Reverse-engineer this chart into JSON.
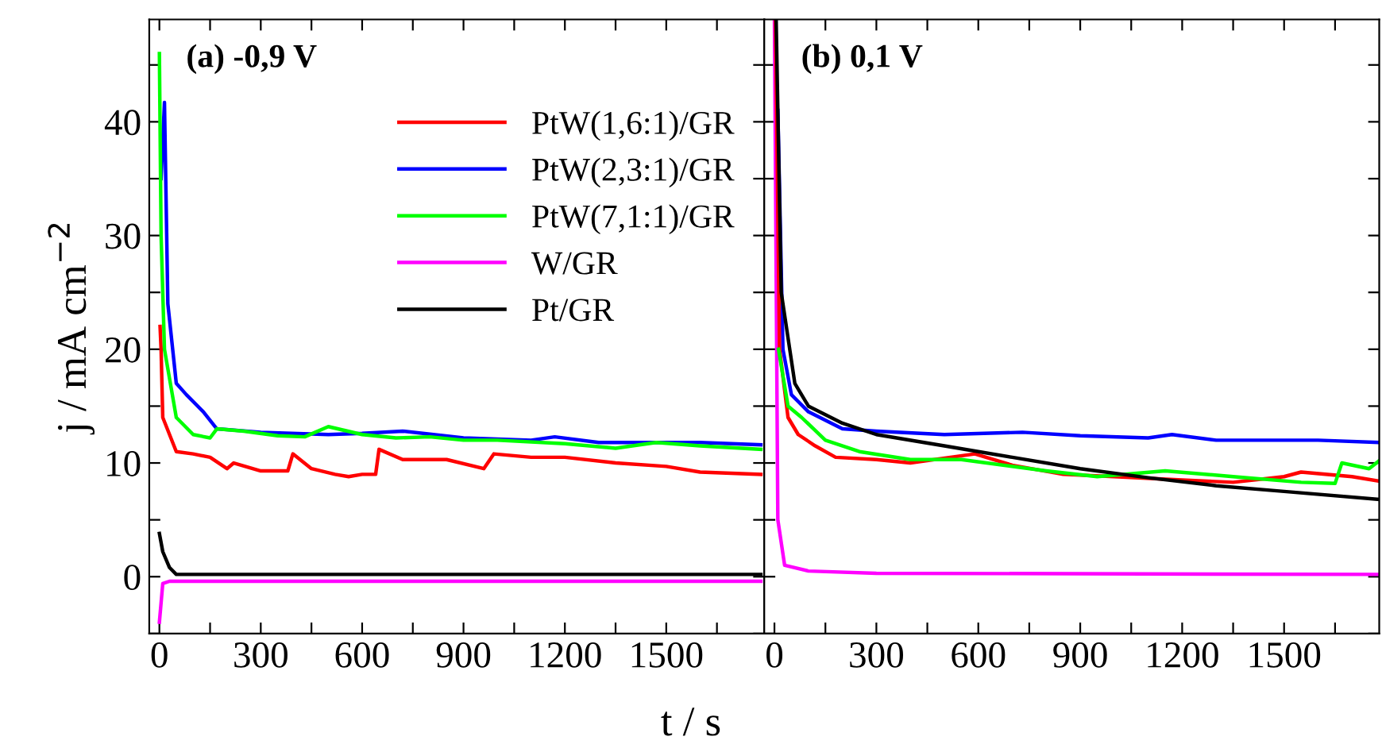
{
  "chart_data": [
    {
      "type": "line",
      "title": "(a) -0,9 V",
      "xlabel": "t / s",
      "ylabel": "j / mA cm$^{−2}$",
      "legend": "top right",
      "grid": false,
      "xlim": [
        -30,
        1790
      ],
      "ylim": [
        -5,
        49
      ],
      "xticks": [
        0,
        {
          "value": 150,
          "label": null
        },
        300,
        {
          "value": 450,
          "label": null
        },
        600,
        {
          "value": 750,
          "label": null
        },
        900,
        {
          "value": 1050,
          "label": null
        },
        1200,
        {
          "value": 1350,
          "label": null
        },
        1500,
        {
          "value": 1650,
          "label": null
        }
      ],
      "yticks": [
        {
          "value": -5,
          "label": null
        },
        0,
        {
          "value": 5,
          "label": null
        },
        10,
        {
          "value": 15,
          "label": null
        },
        20,
        {
          "value": 25,
          "label": null
        },
        30,
        {
          "value": 35,
          "label": null
        },
        40,
        {
          "value": 45,
          "label": null
        }
      ],
      "series": [
        {
          "name": "PtW(1,6:1)/GR",
          "color": "#ff0000",
          "x": [
            2,
            5,
            10,
            50,
            100,
            150,
            200,
            220,
            300,
            380,
            395,
            450,
            520,
            560,
            600,
            640,
            650,
            720,
            850,
            960,
            990,
            1100,
            1200,
            1350,
            1500,
            1600,
            1780
          ],
          "values": [
            22,
            20,
            14,
            11,
            10.8,
            10.5,
            9.5,
            10,
            9.3,
            9.3,
            10.8,
            9.5,
            9,
            8.8,
            9,
            9,
            11.2,
            10.3,
            10.3,
            9.5,
            10.8,
            10.5,
            10.5,
            10,
            9.7,
            9.2,
            9
          ]
        },
        {
          "name": "PtW(2,3:1)/GR",
          "color": "#0000ff",
          "x": [
            5,
            15,
            25,
            50,
            80,
            130,
            170,
            300,
            500,
            600,
            720,
            900,
            1100,
            1170,
            1300,
            1500,
            1600,
            1780
          ],
          "values": [
            35,
            41.7,
            24,
            17,
            16,
            14.5,
            13,
            12.7,
            12.5,
            12.6,
            12.8,
            12.2,
            12,
            12.3,
            11.8,
            11.8,
            11.8,
            11.6
          ]
        },
        {
          "name": "PtW(7,1:1)/GR",
          "color": "#00ff00",
          "x": [
            0,
            5,
            15,
            50,
            100,
            150,
            170,
            250,
            350,
            430,
            500,
            600,
            700,
            800,
            900,
            1000,
            1200,
            1350,
            1470,
            1600,
            1780
          ],
          "values": [
            46,
            30,
            20,
            14,
            12.5,
            12.2,
            13,
            12.8,
            12.4,
            12.3,
            13.2,
            12.5,
            12.2,
            12.3,
            12,
            12,
            11.7,
            11.3,
            11.8,
            11.5,
            11.2
          ]
        },
        {
          "name": "W/GR",
          "color": "#ff00ff",
          "x": [
            0,
            10,
            30,
            1780
          ],
          "values": [
            -4,
            -0.6,
            -0.4,
            -0.4
          ]
        },
        {
          "name": "Pt/GR",
          "color": "#000000",
          "x": [
            0,
            10,
            30,
            50,
            1780
          ],
          "values": [
            3.8,
            2.2,
            0.8,
            0.2,
            0.2
          ]
        }
      ]
    },
    {
      "type": "line",
      "title": "(b) 0,1 V",
      "tick_labels": "x",
      "grid": false,
      "xlim": [
        -30,
        1780
      ],
      "ylim": [
        -5,
        49
      ],
      "xticks": [
        0,
        {
          "value": 150,
          "label": null
        },
        300,
        {
          "value": 450,
          "label": null
        },
        600,
        {
          "value": 750,
          "label": null
        },
        900,
        {
          "value": 1050,
          "label": null
        },
        1200,
        {
          "value": 1350,
          "label": null
        },
        1500,
        {
          "value": 1650,
          "label": null
        }
      ],
      "yticks": [
        {
          "value": -5,
          "label": null
        },
        {
          "value": 0,
          "label": null
        },
        {
          "value": 5,
          "label": null
        },
        {
          "value": 10,
          "label": null
        },
        {
          "value": 15,
          "label": null
        },
        {
          "value": 20,
          "label": null
        },
        {
          "value": 25,
          "label": null
        },
        {
          "value": 30,
          "label": null
        },
        {
          "value": 35,
          "label": null
        },
        {
          "value": 40,
          "label": null
        },
        {
          "value": 45,
          "label": null
        }
      ],
      "series": [
        {
          "color": "#ff00ff",
          "x": [
            0,
            10,
            30,
            100,
            300,
            1780
          ],
          "values": [
            49,
            5,
            1,
            0.5,
            0.3,
            0.2
          ]
        },
        {
          "color": "#0000ff",
          "x": [
            10,
            25,
            50,
            100,
            200,
            300,
            500,
            730,
            900,
            1100,
            1170,
            1300,
            1600,
            1780
          ],
          "values": [
            41,
            20,
            16,
            14.5,
            13,
            12.8,
            12.5,
            12.7,
            12.4,
            12.2,
            12.5,
            12,
            12,
            11.8
          ]
        },
        {
          "color": "#ff0000",
          "x": [
            3,
            15,
            40,
            70,
            120,
            180,
            300,
            400,
            590,
            700,
            850,
            1000,
            1200,
            1350,
            1500,
            1550,
            1700,
            1780
          ],
          "values": [
            49,
            20,
            14,
            12.5,
            11.5,
            10.5,
            10.3,
            10,
            10.8,
            9.8,
            9,
            8.8,
            8.5,
            8.3,
            8.8,
            9.2,
            8.8,
            8.4
          ]
        },
        {
          "color": "#00ff00",
          "x": [
            12,
            40,
            80,
            150,
            250,
            400,
            550,
            800,
            950,
            1150,
            1350,
            1550,
            1650,
            1670,
            1750,
            1780
          ],
          "values": [
            20,
            15,
            14,
            12,
            11,
            10.3,
            10.3,
            9.3,
            8.8,
            9.3,
            8.8,
            8.3,
            8.2,
            10,
            9.5,
            10.2
          ]
        },
        {
          "color": "#000000",
          "x": [
            5,
            20,
            60,
            100,
            200,
            300,
            500,
            700,
            900,
            1100,
            1300,
            1500,
            1780
          ],
          "values": [
            49,
            25,
            17,
            15,
            13.5,
            12.5,
            11.5,
            10.5,
            9.5,
            8.7,
            8,
            7.5,
            6.8
          ]
        }
      ]
    }
  ]
}
